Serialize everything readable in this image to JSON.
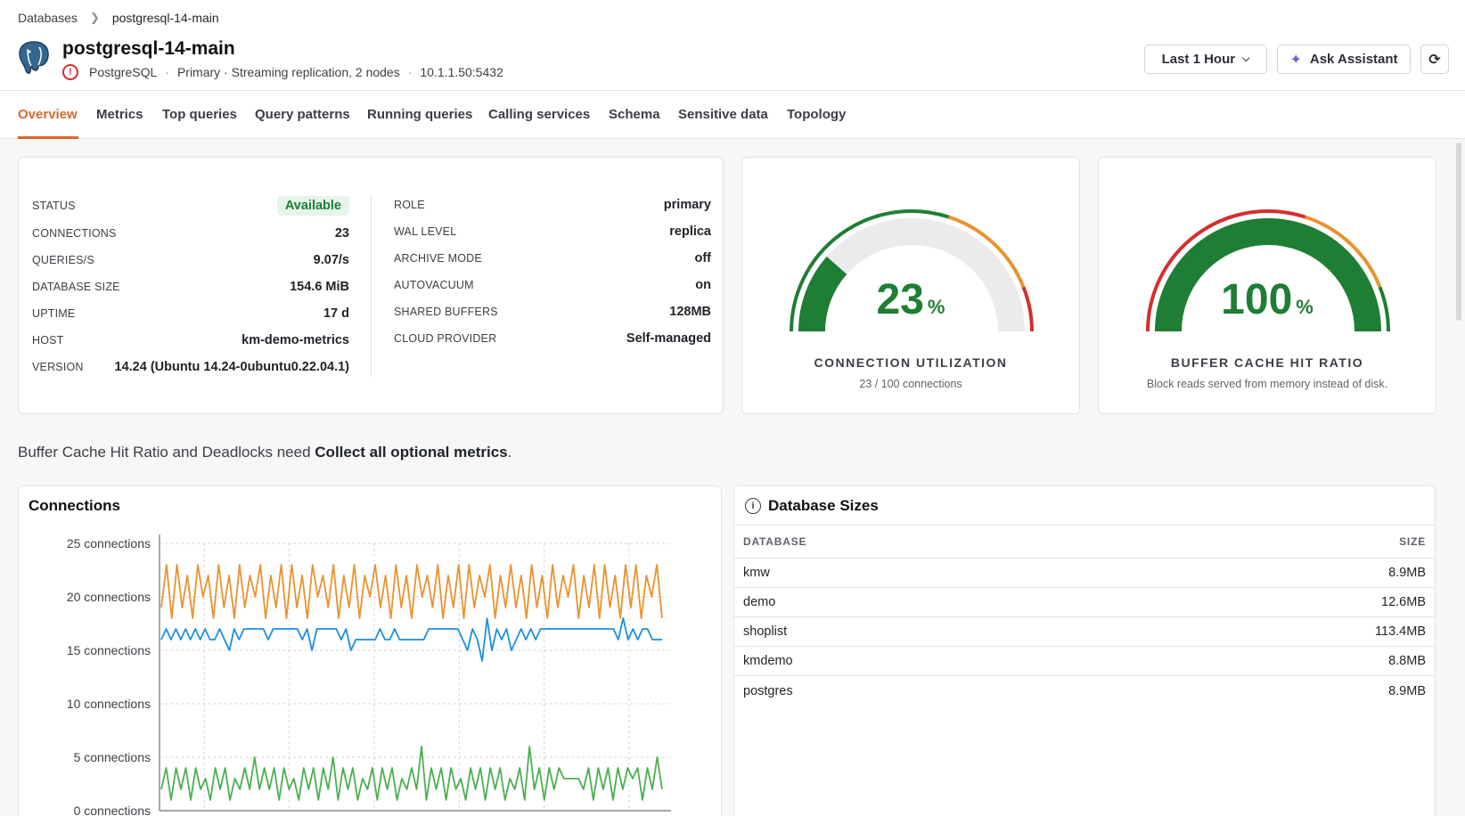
{
  "breadcrumb": {
    "parent": "Databases",
    "current": "postgresql-14-main"
  },
  "header": {
    "title": "postgresql-14-main",
    "engine": "PostgreSQL",
    "role_info": "Primary · Streaming replication, 2 nodes",
    "endpoint": "10.1.1.50:5432"
  },
  "toolbar": {
    "range_label": "Last 1 Hour",
    "assist_label": "Ask Assistant"
  },
  "tabs": [
    {
      "label": "Overview"
    },
    {
      "label": "Metrics"
    },
    {
      "label": "Top queries"
    },
    {
      "label": "Query patterns"
    },
    {
      "label": "Running queries"
    },
    {
      "label": "Calling services"
    },
    {
      "label": "Schema"
    },
    {
      "label": "Sensitive data"
    },
    {
      "label": "Topology"
    }
  ],
  "info_left": [
    {
      "key": "STATUS",
      "value": "Available"
    },
    {
      "key": "CONNECTIONS",
      "value": "23"
    },
    {
      "key": "QUERIES/S",
      "value": "9.07/s"
    },
    {
      "key": "DATABASE SIZE",
      "value": "154.6 MiB"
    },
    {
      "key": "UPTIME",
      "value": "17 d"
    },
    {
      "key": "HOST",
      "value": "km-demo-metrics"
    },
    {
      "key": "VERSION",
      "value": "14.24 (Ubuntu 14.24-0ubuntu0.22.04.1)"
    }
  ],
  "info_right": [
    {
      "key": "ROLE",
      "value": "primary"
    },
    {
      "key": "WAL LEVEL",
      "value": "replica"
    },
    {
      "key": "ARCHIVE MODE",
      "value": "off"
    },
    {
      "key": "AUTOVACUUM",
      "value": "on"
    },
    {
      "key": "SHARED BUFFERS",
      "value": "128MB"
    },
    {
      "key": "CLOUD PROVIDER",
      "value": "Self-managed"
    }
  ],
  "gauges": {
    "connection": {
      "value": "23",
      "unit": "%",
      "fraction": 0.23,
      "label": "CONNECTION UTILIZATION",
      "sub": "23 / 100 connections"
    },
    "cache": {
      "value": "100",
      "unit": "%",
      "fraction": 1.0,
      "label": "BUFFER CACHE HIT RATIO",
      "sub": "Block reads served from memory instead of disk."
    }
  },
  "notice": {
    "prefix": "Buffer Cache Hit Ratio and Deadlocks need ",
    "bold": "Collect all optional metrics",
    "suffix": "."
  },
  "colors": {
    "accent": "#d9682a",
    "good": "#1e7e34",
    "orange": "#e8932f",
    "blue": "#1f8fe0",
    "green": "#4caf50",
    "red": "#d32f2f"
  },
  "chart_data": {
    "type": "line",
    "title": "Connections",
    "ylim": [
      0,
      25
    ],
    "yticks": [
      "0 connections",
      "5 connections",
      "10 connections",
      "15 connections",
      "20 connections",
      "25 connections"
    ],
    "series": [
      {
        "values": [
          19,
          23,
          18,
          23,
          19,
          22,
          18,
          23,
          20,
          22,
          18,
          23,
          19,
          22,
          18,
          23,
          19,
          22,
          20,
          23,
          18,
          22,
          19,
          23,
          18,
          23,
          19,
          22,
          18,
          23,
          20,
          22,
          19,
          23,
          18,
          22,
          19,
          23,
          18,
          22,
          20,
          23,
          19,
          22,
          18,
          23,
          19,
          22,
          18,
          23,
          20,
          22,
          19,
          23,
          18,
          22,
          19,
          23,
          18,
          23,
          19,
          22,
          20,
          23,
          18,
          22,
          19,
          23,
          19,
          22,
          18,
          23,
          19,
          22,
          18,
          23,
          19,
          22,
          20,
          23,
          18,
          22,
          19,
          23,
          18,
          23,
          19,
          22,
          18,
          23,
          19,
          23,
          18,
          22,
          20,
          23,
          18
        ]
      },
      {
        "values": [
          16,
          17,
          16,
          17,
          16,
          17,
          16,
          17,
          16,
          17,
          16,
          16,
          17,
          16,
          15,
          17,
          16,
          17,
          17,
          17,
          17,
          17,
          16,
          17,
          17,
          17,
          17,
          17,
          17,
          16,
          17,
          15,
          17,
          17,
          17,
          17,
          17,
          16,
          17,
          15,
          16,
          16,
          16,
          16,
          16,
          17,
          16,
          16,
          17,
          16,
          16,
          16,
          16,
          16,
          16,
          17,
          17,
          17,
          17,
          17,
          17,
          17,
          16,
          15,
          17,
          16,
          14,
          18,
          15,
          17,
          16,
          17,
          15,
          16,
          17,
          16,
          17,
          16,
          17,
          17,
          17,
          17,
          17,
          17,
          17,
          17,
          17,
          17,
          17,
          17,
          17,
          17,
          17,
          17,
          16,
          18,
          16,
          17,
          16,
          17,
          17,
          16,
          16,
          16
        ]
      },
      {
        "values": [
          2,
          4,
          1,
          4,
          2,
          4,
          1,
          4,
          2,
          3,
          1,
          4,
          2,
          4,
          1,
          3,
          2,
          4,
          2,
          5,
          2,
          4,
          2,
          4,
          1,
          4,
          2,
          3,
          1,
          4,
          2,
          4,
          1,
          4,
          2,
          5,
          1,
          4,
          2,
          4,
          1,
          3,
          2,
          4,
          1,
          4,
          2,
          4,
          1,
          3,
          2,
          4,
          2,
          6,
          1,
          4,
          2,
          4,
          1,
          4,
          2,
          3,
          1,
          4,
          2,
          4,
          1,
          4,
          2,
          4,
          1,
          3,
          2,
          4,
          1,
          6,
          2,
          4,
          1,
          4,
          2,
          4,
          3,
          3,
          3,
          3,
          2,
          4,
          1,
          4,
          2,
          4,
          1,
          4,
          2,
          4,
          3,
          4,
          1,
          4,
          2,
          5,
          2
        ]
      }
    ]
  },
  "db_sizes": {
    "title": "Database Sizes",
    "col_db": "DATABASE",
    "col_size": "SIZE",
    "rows": [
      {
        "name": "kmw",
        "size": "8.9MB"
      },
      {
        "name": "demo",
        "size": "12.6MB"
      },
      {
        "name": "shoplist",
        "size": "113.4MB"
      },
      {
        "name": "kmdemo",
        "size": "8.8MB"
      },
      {
        "name": "postgres",
        "size": "8.9MB"
      }
    ]
  }
}
